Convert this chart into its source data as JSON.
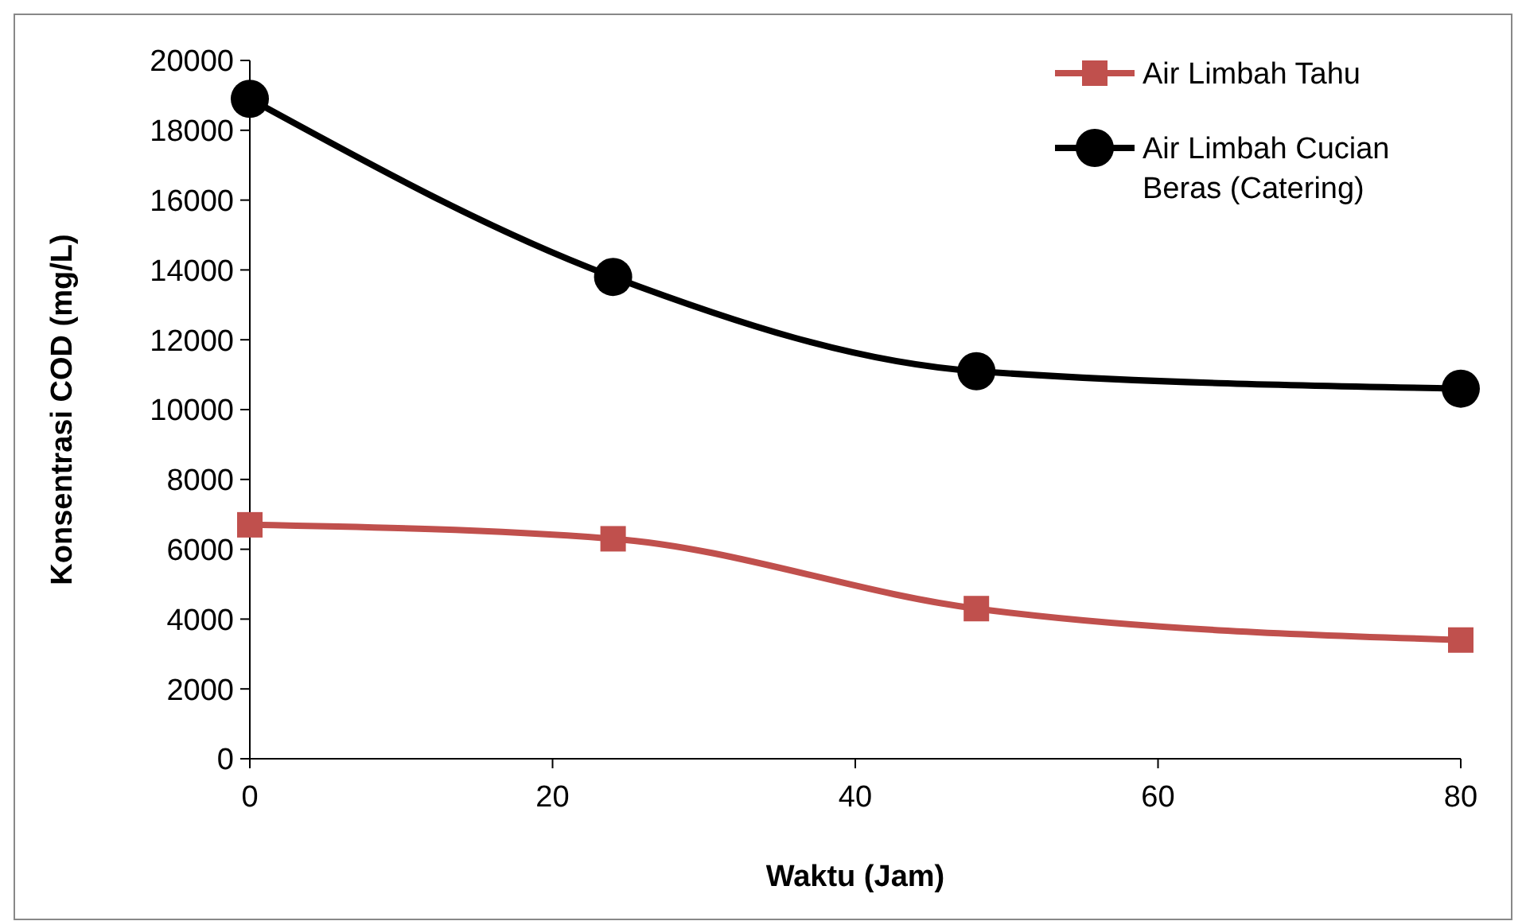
{
  "chart_data": {
    "type": "line",
    "xlabel": "Waktu (Jam)",
    "ylabel": "Konsentrasi COD (mg/L)",
    "x": [
      0,
      24,
      48,
      80
    ],
    "series": [
      {
        "name": "Air Limbah Tahu",
        "color": "#c0504d",
        "marker": "square",
        "values": [
          6700,
          6300,
          4300,
          3400
        ]
      },
      {
        "name": "Air Limbah Cucian Beras (Catering)",
        "color": "#000000",
        "marker": "circle",
        "values": [
          18900,
          13800,
          11100,
          10600
        ]
      }
    ],
    "xlim": [
      0,
      80
    ],
    "xticks": [
      0,
      20,
      40,
      60,
      80
    ],
    "ylim": [
      0,
      20000
    ],
    "yticks": [
      0,
      2000,
      4000,
      6000,
      8000,
      10000,
      12000,
      14000,
      16000,
      18000,
      20000
    ],
    "grid": false,
    "legend": "top right",
    "line_style": "solid"
  }
}
